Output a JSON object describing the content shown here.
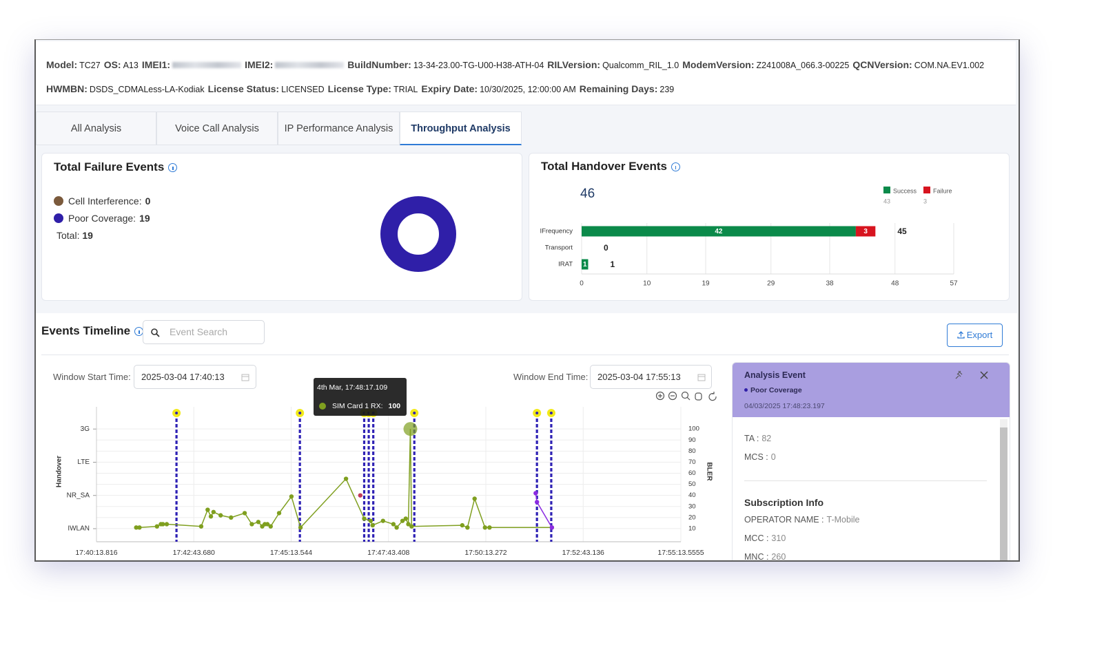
{
  "header": {
    "rows": [
      [
        {
          "label": "Model:",
          "value": "TC27"
        },
        {
          "label": "OS:",
          "value": "A13"
        },
        {
          "label": "IMEI1:"
        },
        {
          "label": "IMEI2:"
        },
        {
          "label": "BuildNumber:",
          "value": "13-34-23.00-TG-U00-H38-ATH-04"
        },
        {
          "label": "RILVersion:",
          "value": "Qualcomm_RIL_1.0"
        },
        {
          "label": "ModemVersion:",
          "value": "Z241008A_066.3-00225"
        },
        {
          "label": "QCNVersion:",
          "value": "COM.NA.EV1.002"
        }
      ],
      [
        {
          "label": "HWMBN:",
          "value": "DSDS_CDMALess-LA-Kodiak"
        },
        {
          "label": "License Status:",
          "value": "LICENSED"
        },
        {
          "label": "License Type:",
          "value": "TRIAL"
        },
        {
          "label": "Expiry Date:",
          "value": "10/30/2025, 12:00:00 AM"
        },
        {
          "label": "Remaining Days:",
          "value": 239
        }
      ]
    ]
  },
  "tabs": {
    "items": [
      "All Analysis",
      "Voice Call Analysis",
      "IP Performance Analysis",
      "Throughput Analysis"
    ],
    "active": 3
  },
  "failure_card": {
    "title": "Total Failure Events",
    "chart": {
      "type": "donut",
      "items": [
        {
          "label": "Cell Interference:",
          "value": 0,
          "color": "#7b5a3c"
        },
        {
          "label": "Poor Coverage:",
          "value": 19,
          "color": "#2f1fa8"
        }
      ]
    },
    "total_label": "Total:",
    "total": 19
  },
  "handover_card": {
    "title": "Total Handover Events",
    "total": 46,
    "chart": {
      "type": "bar",
      "categories": [
        "IFrequency",
        "Transport",
        "IRAT"
      ],
      "series": [
        {
          "name": "Success",
          "color": "#0b8a4a",
          "total": 43,
          "values": [
            42,
            0,
            1
          ]
        },
        {
          "name": "Failure",
          "color": "#d7141f",
          "total": 3,
          "values": [
            3,
            0,
            0
          ]
        }
      ],
      "totals": [
        45,
        0,
        1
      ],
      "xlim": [
        0,
        57
      ],
      "xticks": [
        0,
        10,
        19,
        29,
        38,
        48,
        57
      ],
      "grid": true
    }
  },
  "timeline": {
    "title": "Events Timeline",
    "search_placeholder": "Event Search",
    "export": "Export",
    "window_start_label": "Window Start Time:",
    "window_start": "2025-03-04 17:40:13",
    "window_end_label": "Window End Time:",
    "window_end": "2025-03-04 17:55:13",
    "chart": {
      "type": "line",
      "xlim": [
        "17:40:13.816",
        "17:55:13.5555"
      ],
      "xticks": [
        "17:40:13.816",
        "17:42:43.680",
        "17:45:13.544",
        "17:47:43.408",
        "17:50:13.272",
        "17:52:43.136",
        "17:55:13.5555"
      ],
      "y_label": "Handover",
      "y_categories": [
        "IWLAN",
        "NR_SA",
        "LTE",
        "3G"
      ],
      "y2_label": "BLER",
      "y2lim": [
        0,
        120
      ],
      "y2ticks": [
        10,
        20,
        30,
        40,
        50,
        60,
        70,
        80,
        90,
        100
      ],
      "grid": true,
      "series": [
        {
          "name": "SIM Card 1 RX",
          "color": "#7f9f1f",
          "x": [
            "17:41:15",
            "17:41:20",
            "17:41:47",
            "17:41:53",
            "17:41:56",
            "17:42:02",
            "17:42:55",
            "17:43:05",
            "17:43:10",
            "17:43:14",
            "17:43:25",
            "17:43:41",
            "17:44:02",
            "17:44:13",
            "17:44:23",
            "17:44:29",
            "17:44:33",
            "17:44:37",
            "17:44:42",
            "17:44:55",
            "17:45:14",
            "17:45:28",
            "17:46:38",
            "17:47:06",
            "17:47:16",
            "17:47:19",
            "17:47:35",
            "17:47:51",
            "17:47:56",
            "17:48:05",
            "17:48:10",
            "17:48:14",
            "17:48:17.109",
            "17:48:19",
            "17:49:37",
            "17:49:45",
            "17:49:56",
            "17:50:12",
            "17:50:19",
            "17:51:55"
          ],
          "values": [
            11,
            11,
            12,
            14,
            14,
            14,
            12,
            27,
            21,
            25,
            22,
            20,
            24,
            14,
            16,
            12,
            14,
            14,
            12,
            24,
            39,
            11,
            55,
            19,
            17,
            13,
            17,
            14,
            11,
            17,
            19,
            14,
            100,
            12,
            13,
            11,
            37,
            11,
            11,
            11
          ]
        },
        {
          "color": "#8b2be2",
          "x": [
            "17:51:30",
            "17:51:32",
            "17:51:55"
          ],
          "values": [
            42,
            34,
            11
          ]
        },
        {
          "color": "#c23b5a",
          "x": [
            "17:47:00"
          ],
          "values": [
            40
          ]
        }
      ],
      "events": {
        "color": "#2f22b5",
        "marker_color": "#f2ea1a",
        "x": [
          "17:42:17",
          "17:45:27",
          "17:47:06",
          "17:47:13",
          "17:47:20",
          "17:48:23.197",
          "17:51:32",
          "17:51:54"
        ]
      },
      "tooltip": {
        "title": "4th Mar, 17:48:17.109",
        "label": "SIM Card 1 RX:",
        "value": 100
      }
    }
  },
  "analysis_panel": {
    "title": "Analysis Event",
    "event": "Poor Coverage",
    "timestamp": "04/03/2025 17:48:23.197",
    "fields": [
      {
        "label": "TA :",
        "value": 82
      },
      {
        "label": "MCS :",
        "value": 0
      }
    ],
    "subscription_title": "Subscription Info",
    "subscription": [
      {
        "label": "OPERATOR NAME :",
        "value": "T-Mobile"
      },
      {
        "label": "MCC :",
        "value": 310
      },
      {
        "label": "MNC :",
        "value": 260
      }
    ]
  }
}
